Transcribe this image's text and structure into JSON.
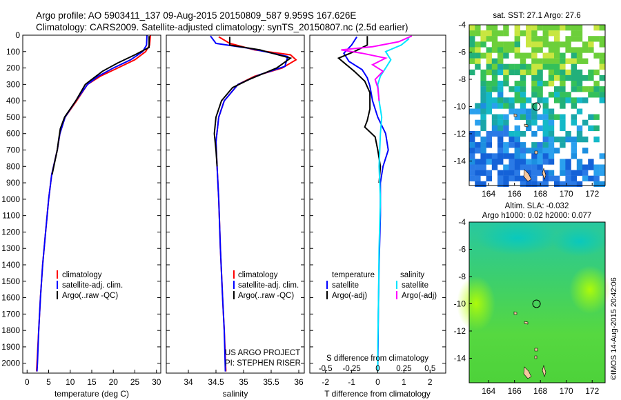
{
  "header": {
    "line1": "Argo profile: AO 5903411_137 09-Aug-2015 20150809_587 9.959S 167.626E",
    "line2": "Climatology: CARS2009. Satellite-adjusted climatology: synTS_20150807.nc (2.5d earlier)"
  },
  "side_label": "©IMOS 14-Aug-2015 20:42:06",
  "colors": {
    "climatology": "#ff0000",
    "satellite": "#0000ff",
    "argo": "#000000",
    "sat_salinity": "#00e5ff",
    "argo_salinity": "#ff00ff"
  },
  "chart_data": [
    {
      "type": "line",
      "name": "temperature-profile",
      "xlabel": "temperature (deg C)",
      "xlim": [
        -1,
        31
      ],
      "xticks": [
        0,
        5,
        10,
        15,
        20,
        25,
        30
      ],
      "ylim": [
        0,
        2060
      ],
      "yticks": [
        0,
        100,
        200,
        300,
        400,
        500,
        600,
        700,
        800,
        900,
        1000,
        1100,
        1200,
        1300,
        1400,
        1500,
        1600,
        1700,
        1800,
        1900,
        2000
      ],
      "legend": [
        "climatology",
        "satellite-adj. clim.",
        "Argo(..raw -QC)"
      ],
      "legend_position": "lower-right",
      "series": [
        {
          "name": "climatology",
          "color": "#ff0000",
          "points": [
            [
              28.6,
              0
            ],
            [
              28.4,
              60
            ],
            [
              27.5,
              100
            ],
            [
              25,
              150
            ],
            [
              21,
              200
            ],
            [
              17,
              250
            ],
            [
              14,
              300
            ],
            [
              11.5,
              400
            ],
            [
              8.8,
              500
            ],
            [
              7.6,
              600
            ],
            [
              7,
              700
            ],
            [
              5.7,
              850
            ],
            [
              5,
              1000
            ],
            [
              4.3,
              1200
            ],
            [
              3.6,
              1400
            ],
            [
              3.1,
              1600
            ],
            [
              2.7,
              1800
            ],
            [
              2.3,
              2000
            ],
            [
              2.2,
              2050
            ]
          ]
        },
        {
          "name": "satellite-adj. clim.",
          "color": "#0000ff",
          "points": [
            [
              27.8,
              0
            ],
            [
              27.7,
              60
            ],
            [
              26.8,
              100
            ],
            [
              24,
              150
            ],
            [
              20,
              200
            ],
            [
              16.5,
              250
            ],
            [
              14,
              300
            ],
            [
              11.3,
              400
            ],
            [
              8.8,
              500
            ],
            [
              7.6,
              600
            ],
            [
              7,
              700
            ],
            [
              5.7,
              850
            ],
            [
              5,
              1000
            ],
            [
              4.3,
              1200
            ],
            [
              3.6,
              1400
            ],
            [
              3.1,
              1600
            ],
            [
              2.7,
              1800
            ],
            [
              2.4,
              2000
            ],
            [
              2.3,
              2050
            ]
          ]
        },
        {
          "name": "Argo(..raw -QC)",
          "color": "#000000",
          "points": [
            [
              28.3,
              5
            ],
            [
              28.3,
              75
            ],
            [
              25,
              120
            ],
            [
              21,
              170
            ],
            [
              17.5,
              220
            ],
            [
              15,
              270
            ],
            [
              13.5,
              300
            ],
            [
              11.3,
              400
            ],
            [
              8.7,
              500
            ],
            [
              7.7,
              570
            ],
            [
              7.3,
              640
            ],
            [
              7,
              700
            ],
            [
              5.8,
              850
            ]
          ]
        }
      ]
    },
    {
      "type": "line",
      "name": "salinity-profile",
      "xlabel": "salinity",
      "xlim": [
        33.6,
        36.1
      ],
      "xticks": [
        34,
        34.5,
        35,
        35.5,
        36
      ],
      "ylim": [
        0,
        2060
      ],
      "legend": [
        "climatology",
        "satellite-adj. clim.",
        "Argo(..raw -QC)"
      ],
      "legend_position": "lower-right",
      "annotation": [
        "US ARGO PROJECT",
        "PI: STEPHEN RISER"
      ],
      "series": [
        {
          "name": "climatology",
          "color": "#ff0000",
          "points": [
            [
              34.55,
              10
            ],
            [
              34.75,
              50
            ],
            [
              35.2,
              90
            ],
            [
              35.85,
              120
            ],
            [
              35.95,
              150
            ],
            [
              35.7,
              200
            ],
            [
              35.2,
              250
            ],
            [
              34.9,
              300
            ],
            [
              34.65,
              400
            ],
            [
              34.55,
              500
            ],
            [
              34.5,
              650
            ],
            [
              34.52,
              800
            ],
            [
              34.55,
              1000
            ],
            [
              34.58,
              1300
            ],
            [
              34.62,
              1600
            ],
            [
              34.65,
              1800
            ],
            [
              34.68,
              2050
            ]
          ]
        },
        {
          "name": "satellite-adj. clim.",
          "color": "#0000ff",
          "points": [
            [
              34.4,
              5
            ],
            [
              34.5,
              50
            ],
            [
              35.1,
              80
            ],
            [
              35.8,
              130
            ],
            [
              35.75,
              190
            ],
            [
              35.3,
              240
            ],
            [
              34.9,
              300
            ],
            [
              34.65,
              400
            ],
            [
              34.55,
              500
            ],
            [
              34.5,
              650
            ],
            [
              34.52,
              800
            ],
            [
              34.55,
              1000
            ],
            [
              34.58,
              1300
            ],
            [
              34.62,
              1600
            ],
            [
              34.65,
              1800
            ],
            [
              34.67,
              2050
            ]
          ]
        },
        {
          "name": "Argo(..raw -QC)",
          "color": "#000000",
          "points": [
            [
              34.75,
              10
            ],
            [
              34.75,
              60
            ],
            [
              35.3,
              90
            ],
            [
              35.85,
              140
            ],
            [
              35.6,
              200
            ],
            [
              35.1,
              270
            ],
            [
              34.8,
              320
            ],
            [
              34.6,
              400
            ],
            [
              34.5,
              500
            ],
            [
              34.47,
              600
            ],
            [
              34.5,
              700
            ],
            [
              34.52,
              800
            ]
          ]
        }
      ]
    },
    {
      "type": "line",
      "name": "difference-profile",
      "xlabel": "T difference from climatology",
      "xlabel_top": "S difference from climatology",
      "xlim": [
        -2.6,
        2.6
      ],
      "xticks": [
        -2,
        -1,
        0,
        1,
        2
      ],
      "sticks": [
        -0.5,
        -0.25,
        0,
        0.25,
        0.5
      ],
      "ylim": [
        0,
        2060
      ],
      "legend_headers": [
        "temperature",
        "salinity"
      ],
      "legend": [
        "satellite",
        "Argo(-adj)",
        "satellite",
        "Argo(-adj)"
      ],
      "legend_position": "lower-center",
      "series": [
        {
          "name": "temperature satellite",
          "color": "#0000ff",
          "points": [
            [
              -0.8,
              10
            ],
            [
              -1,
              60
            ],
            [
              -1.3,
              110
            ],
            [
              -1.1,
              160
            ],
            [
              -0.6,
              210
            ],
            [
              -0.4,
              260
            ],
            [
              -0.3,
              310
            ],
            [
              -0.2,
              400
            ],
            [
              0,
              500
            ],
            [
              0.3,
              600
            ],
            [
              0.4,
              700
            ],
            [
              0.2,
              800
            ],
            [
              0.1,
              900
            ],
            [
              0.1,
              1100
            ],
            [
              0.05,
              1400
            ],
            [
              0.02,
              1700
            ],
            [
              0,
              2050
            ]
          ]
        },
        {
          "name": "temperature Argo(-adj)",
          "color": "#000000",
          "points": [
            [
              -0.4,
              5
            ],
            [
              -0.4,
              60
            ],
            [
              -0.9,
              100
            ],
            [
              -1.5,
              140
            ],
            [
              -1.2,
              180
            ],
            [
              -0.9,
              220
            ],
            [
              -0.5,
              280
            ],
            [
              -0.3,
              350
            ],
            [
              -0.3,
              450
            ],
            [
              -0.4,
              520
            ],
            [
              -0.5,
              560
            ],
            [
              -0.1,
              620
            ],
            [
              0,
              700
            ],
            [
              0.1,
              800
            ],
            [
              0.05,
              900
            ]
          ]
        },
        {
          "name": "salinity satellite",
          "color": "#00e5ff",
          "points": [
            [
              1.2,
              20
            ],
            [
              0.9,
              60
            ],
            [
              0.3,
              100
            ],
            [
              0.5,
              150
            ],
            [
              0.3,
              200
            ],
            [
              0.1,
              250
            ],
            [
              0,
              300
            ],
            [
              0.05,
              400
            ],
            [
              0.15,
              500
            ],
            [
              0.1,
              600
            ],
            [
              0.05,
              800
            ],
            [
              0.1,
              1000
            ],
            [
              0.05,
              1300
            ],
            [
              0.03,
              1600
            ],
            [
              0,
              1900
            ],
            [
              0,
              2050
            ]
          ]
        },
        {
          "name": "salinity Argo(-adj)",
          "color": "#ff00ff",
          "points": [
            [
              1.3,
              5
            ],
            [
              0.8,
              40
            ],
            [
              -0.2,
              70
            ],
            [
              -1.4,
              90
            ],
            [
              -0.6,
              110
            ],
            [
              0.3,
              140
            ],
            [
              -0.2,
              180
            ],
            [
              0.2,
              220
            ],
            [
              -0.1,
              270
            ],
            [
              0,
              320
            ],
            [
              0.05,
              400
            ]
          ]
        }
      ]
    },
    {
      "type": "heatmap",
      "name": "sst-map",
      "title": "sat. SST: 27.1 Argo: 27.6",
      "xlim": [
        162.5,
        173
      ],
      "xticks": [
        164,
        166,
        168,
        170,
        172
      ],
      "ylim": [
        -15.8,
        -4
      ],
      "yticks": [
        -4,
        -6,
        -8,
        -10,
        -12,
        -14
      ],
      "marker": [
        167.7,
        -10
      ]
    },
    {
      "type": "heatmap",
      "name": "sla-map",
      "title": [
        "Altim. SLA: -0.032",
        "Argo h1000: 0.02 h2000: 0.077"
      ],
      "xlim": [
        162.5,
        173
      ],
      "xticks": [
        164,
        166,
        168,
        170,
        172
      ],
      "ylim": [
        -15.8,
        -4
      ],
      "yticks": [
        -4,
        -6,
        -8,
        -10,
        -12,
        -14
      ],
      "marker": [
        167.7,
        -10
      ]
    }
  ]
}
